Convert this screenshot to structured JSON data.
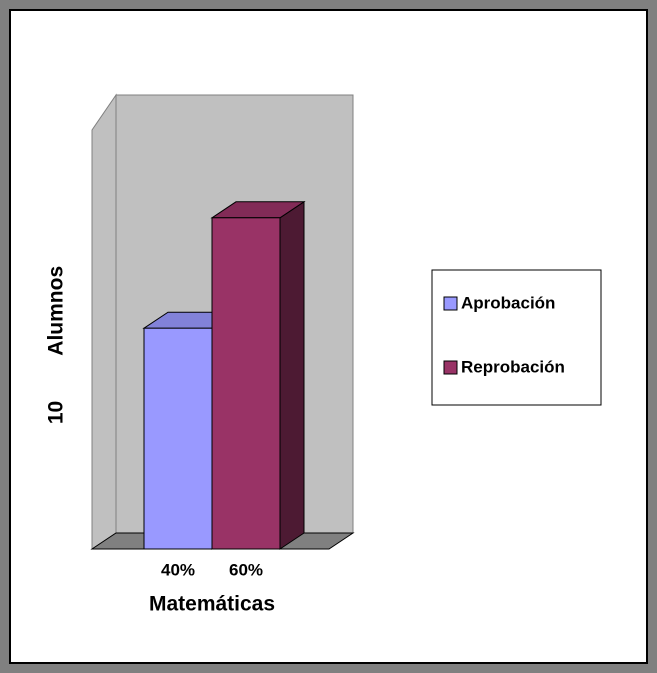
{
  "chart_data": {
    "type": "bar3d",
    "y_label": "10 Alumnos",
    "categories": [
      "Matemáticas"
    ],
    "series": [
      {
        "name": "Aprobación",
        "color": "#9999ff",
        "values": [
          40
        ],
        "value_labels": [
          "40%"
        ]
      },
      {
        "name": "Reprobación",
        "color": "#993366",
        "values": [
          60
        ],
        "value_labels": [
          "60%"
        ]
      }
    ],
    "legend": "right"
  }
}
